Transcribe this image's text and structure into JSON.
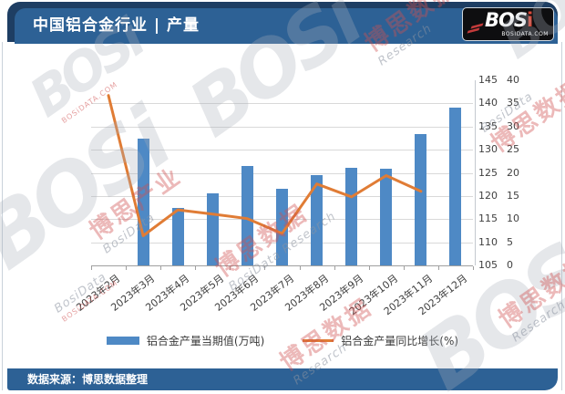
{
  "header": {
    "title": "中国铝合金行业 | 产量",
    "logo": {
      "text": "BOS",
      "text_accent": "i",
      "subtext": "BOSIDATA.COM"
    }
  },
  "footer": {
    "source": "数据来源：博思数据整理"
  },
  "legend": [
    {
      "label": "铝合金产量当期值(万吨)",
      "type": "bar"
    },
    {
      "label": "铝合金产量同比增长(%)",
      "type": "line"
    }
  ],
  "watermarks": {
    "brand_ghost": "BOSi",
    "cn": "博思数据",
    "cn_alt": "博思产业",
    "en": "BosiData Research",
    "en_short": "Research",
    "en_name": "BosiData",
    "url": "BOSiDATA.COM"
  },
  "colors": {
    "bar": "#4e89c5",
    "line": "#e07c35",
    "header_blue": "#2d6195",
    "frame_navy": "#1e3e63",
    "grid": "#d9d9d9",
    "axis": "#a0a0a0"
  },
  "chart_data": {
    "type": "bar",
    "subtype": "bar+line combo, dual right axes",
    "title": "中国铝合金行业 | 产量",
    "categories": [
      "2023年2月",
      "2023年3月",
      "2023年4月",
      "2023年5月",
      "2023年6月",
      "2023年7月",
      "2023年8月",
      "2023年9月",
      "2023年10月",
      "2023年11月",
      "2023年12月"
    ],
    "series": [
      {
        "name": "铝合金产量当期值(万吨)",
        "type": "bar",
        "axis": "primary",
        "values": [
          null,
          132.3,
          117.5,
          120.6,
          126.4,
          121.5,
          124.6,
          126.0,
          125.9,
          133.3,
          139.1
        ]
      },
      {
        "name": "铝合金产量同比增长(%)",
        "type": "line",
        "axis": "secondary",
        "values": [
          36.7,
          6.4,
          12.0,
          11.1,
          10.1,
          6.9,
          17.6,
          14.8,
          19.4,
          16.0,
          null
        ]
      }
    ],
    "primary_axis": {
      "min": 105,
      "max": 145,
      "step": 5,
      "unit": "万吨",
      "position": "right inner column"
    },
    "secondary_axis": {
      "min": 0,
      "max": 40,
      "step": 5,
      "unit": "%",
      "position": "right outer column"
    },
    "grid": "horizontal gridlines on",
    "legend_position": "bottom center",
    "x_tick_label_rotation": -38
  }
}
